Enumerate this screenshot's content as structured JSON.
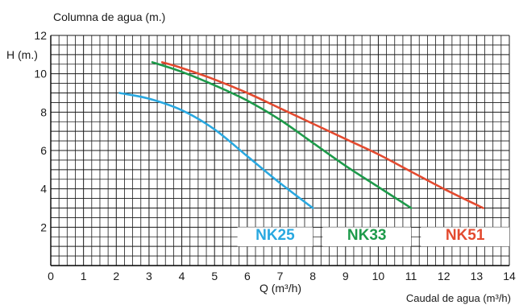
{
  "chart_data": {
    "type": "line",
    "title": "Columna de agua (m.)",
    "ylabel": "H (m.)",
    "xlabel": "Q (m³/h)",
    "xlabel_secondary": "Caudal de agua (m³/h)",
    "xlim": [
      0,
      14
    ],
    "ylim": [
      0,
      12
    ],
    "x_ticks": [
      0,
      1,
      2,
      3,
      4,
      5,
      6,
      7,
      8,
      9,
      10,
      11,
      12,
      13,
      14
    ],
    "y_ticks": [
      2,
      4,
      6,
      8,
      10,
      12
    ],
    "x_tick_labels": [
      "0",
      "1",
      "2",
      "3",
      "4",
      "5",
      "6",
      "7",
      "8",
      "9",
      "10",
      "11",
      "12",
      "13",
      "14"
    ],
    "y_tick_labels": [
      "2",
      "4",
      "6",
      "8",
      "10",
      "12"
    ],
    "grid": true,
    "series": [
      {
        "name": "NK25",
        "color": "#29a8e0",
        "x": [
          2.1,
          3.0,
          4.0,
          5.0,
          6.0,
          7.0,
          8.0
        ],
        "y": [
          9.0,
          8.7,
          8.1,
          7.1,
          5.7,
          4.3,
          3.0
        ]
      },
      {
        "name": "NK33",
        "color": "#1d9a4a",
        "x": [
          3.1,
          4.0,
          5.0,
          6.0,
          7.0,
          8.0,
          9.0,
          10.0,
          11.0
        ],
        "y": [
          10.6,
          10.1,
          9.4,
          8.6,
          7.6,
          6.4,
          5.2,
          4.1,
          3.0
        ]
      },
      {
        "name": "NK51",
        "color": "#e34a2f",
        "x": [
          3.4,
          4.0,
          5.0,
          6.0,
          7.0,
          8.0,
          9.0,
          10.0,
          11.0,
          12.0,
          13.2
        ],
        "y": [
          10.6,
          10.3,
          9.7,
          9.0,
          8.2,
          7.4,
          6.6,
          5.8,
          4.9,
          4.0,
          3.0
        ]
      }
    ]
  }
}
